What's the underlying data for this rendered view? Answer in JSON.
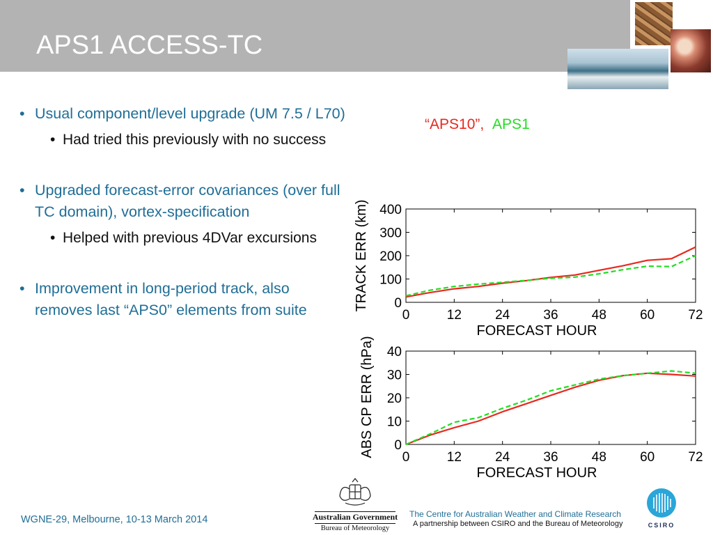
{
  "slide": {
    "title": "APS1 ACCESS-TC"
  },
  "bullets": [
    {
      "text": "Usual component/level upgrade (UM 7.5 / L70)",
      "sub": "Had tried this previously with no success"
    },
    {
      "text": "Upgraded forecast-error covariances (over full TC domain), vortex-specification",
      "sub": "Helped with previous 4DVar excursions"
    },
    {
      "text": "Improvement in long-period track, also removes last “APS0” elements from suite",
      "sub": ""
    }
  ],
  "legend": {
    "aps10": "“APS10”,",
    "aps1": "APS1"
  },
  "colors": {
    "aps10": "#e8281e",
    "aps1": "#22dd22",
    "accent": "#1f6e96",
    "title_bar": "#b3b3b3"
  },
  "chart_data": [
    {
      "type": "line",
      "xlabel": "FORECAST HOUR",
      "ylabel": "TRACK ERR (km)",
      "xlim": [
        0,
        72
      ],
      "ylim": [
        0,
        400
      ],
      "xticks": [
        "0",
        "12",
        "24",
        "36",
        "48",
        "60",
        "72"
      ],
      "yticks": [
        "0",
        "100",
        "200",
        "300",
        "400"
      ],
      "grid": false,
      "series": [
        {
          "name": "“APS10”",
          "style": "solid",
          "color": "#e8281e",
          "x": [
            0,
            6,
            12,
            18,
            24,
            30,
            36,
            42,
            48,
            54,
            60,
            66,
            72
          ],
          "y": [
            23,
            42,
            58,
            68,
            82,
            93,
            107,
            117,
            137,
            157,
            180,
            187,
            237
          ]
        },
        {
          "name": "APS1",
          "style": "dashed",
          "color": "#22dd22",
          "x": [
            0,
            6,
            12,
            18,
            24,
            30,
            36,
            42,
            48,
            54,
            60,
            66,
            72
          ],
          "y": [
            28,
            52,
            68,
            78,
            86,
            94,
            103,
            108,
            122,
            140,
            155,
            153,
            200
          ]
        }
      ]
    },
    {
      "type": "line",
      "xlabel": "FORECAST HOUR",
      "ylabel": "ABS CP ERR (hPa)",
      "xlim": [
        0,
        72
      ],
      "ylim": [
        0,
        40
      ],
      "xticks": [
        "0",
        "12",
        "24",
        "36",
        "48",
        "60",
        "72"
      ],
      "yticks": [
        "0",
        "10",
        "20",
        "30",
        "40"
      ],
      "grid": false,
      "series": [
        {
          "name": "“APS10”",
          "style": "solid",
          "color": "#e8281e",
          "x": [
            0,
            6,
            12,
            18,
            24,
            30,
            36,
            42,
            48,
            54,
            60,
            66,
            72
          ],
          "y": [
            0,
            4,
            7.2,
            10,
            14,
            17.5,
            21,
            24.5,
            27.5,
            29.5,
            30.5,
            30,
            29.3
          ]
        },
        {
          "name": "APS1",
          "style": "dashed",
          "color": "#22dd22",
          "x": [
            0,
            6,
            12,
            18,
            24,
            30,
            36,
            42,
            48,
            54,
            60,
            66,
            72
          ],
          "y": [
            0,
            4.5,
            9.5,
            11.5,
            15.5,
            19,
            23,
            25.5,
            28,
            29.5,
            30.5,
            31.5,
            30.5
          ]
        }
      ]
    }
  ],
  "footer": {
    "event": "WGNE-29, Melbourne, 10-13 March 2014",
    "gov_line1": "Australian Government",
    "gov_line2": "Bureau of Meteorology",
    "centre": "The Centre for Australian Weather and Climate Research",
    "partnership": "A partnership between CSIRO and the Bureau of Meteorology",
    "csiro": "CSIRO"
  }
}
